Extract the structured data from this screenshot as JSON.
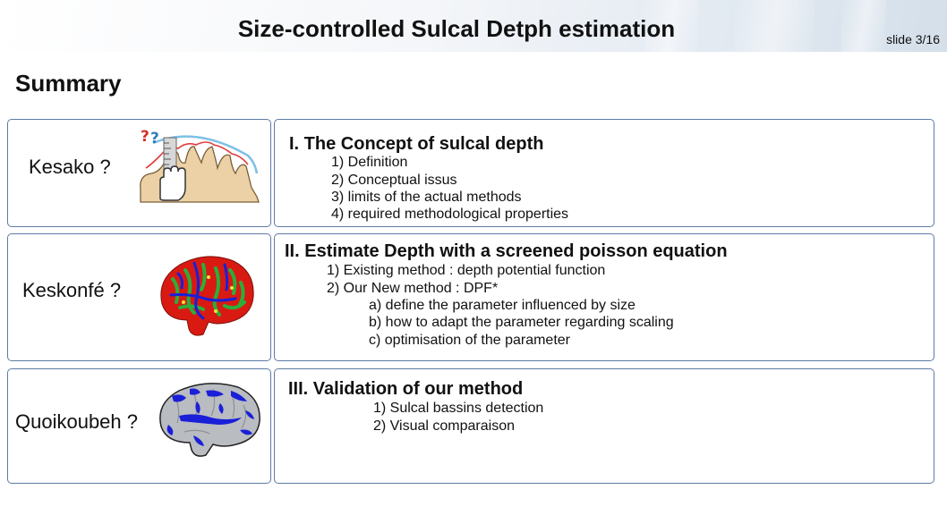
{
  "header": {
    "title": "Size-controlled Sulcal Detph estimation",
    "slide_number": "slide 3/16"
  },
  "page_title": "Summary",
  "rows": [
    {
      "question": "Kesako ?",
      "icon": "brain-section-ruler-icon",
      "section_title": "I. The Concept of sulcal depth",
      "items": [
        "1) Definition",
        "2) Conceptual issus",
        "3) limits of the actual methods",
        "4) required methodological properties"
      ]
    },
    {
      "question": "Keskonfé ?",
      "icon": "brain-colormap-icon",
      "section_title": "II. Estimate Depth with a screened poisson equation",
      "items": [
        "1) Existing method : depth potential function",
        "2) Our New method : DPF*"
      ],
      "subitems": [
        "a) define the parameter influenced by size",
        "b) how to adapt the parameter regarding scaling",
        "c) optimisation of the parameter"
      ]
    },
    {
      "question": "Quoikoubeh ?",
      "icon": "brain-basins-icon",
      "section_title": "III. Validation of our method",
      "items": [
        "1) Sulcal bassins detection",
        "2) Visual comparaison"
      ]
    }
  ],
  "colors": {
    "box_border": "#5e7aa3",
    "brain_red": "#d91a12",
    "brain_green": "#2cae3a",
    "brain_blue": "#1a1fd8",
    "brain_gray": "#b9bcc1"
  }
}
